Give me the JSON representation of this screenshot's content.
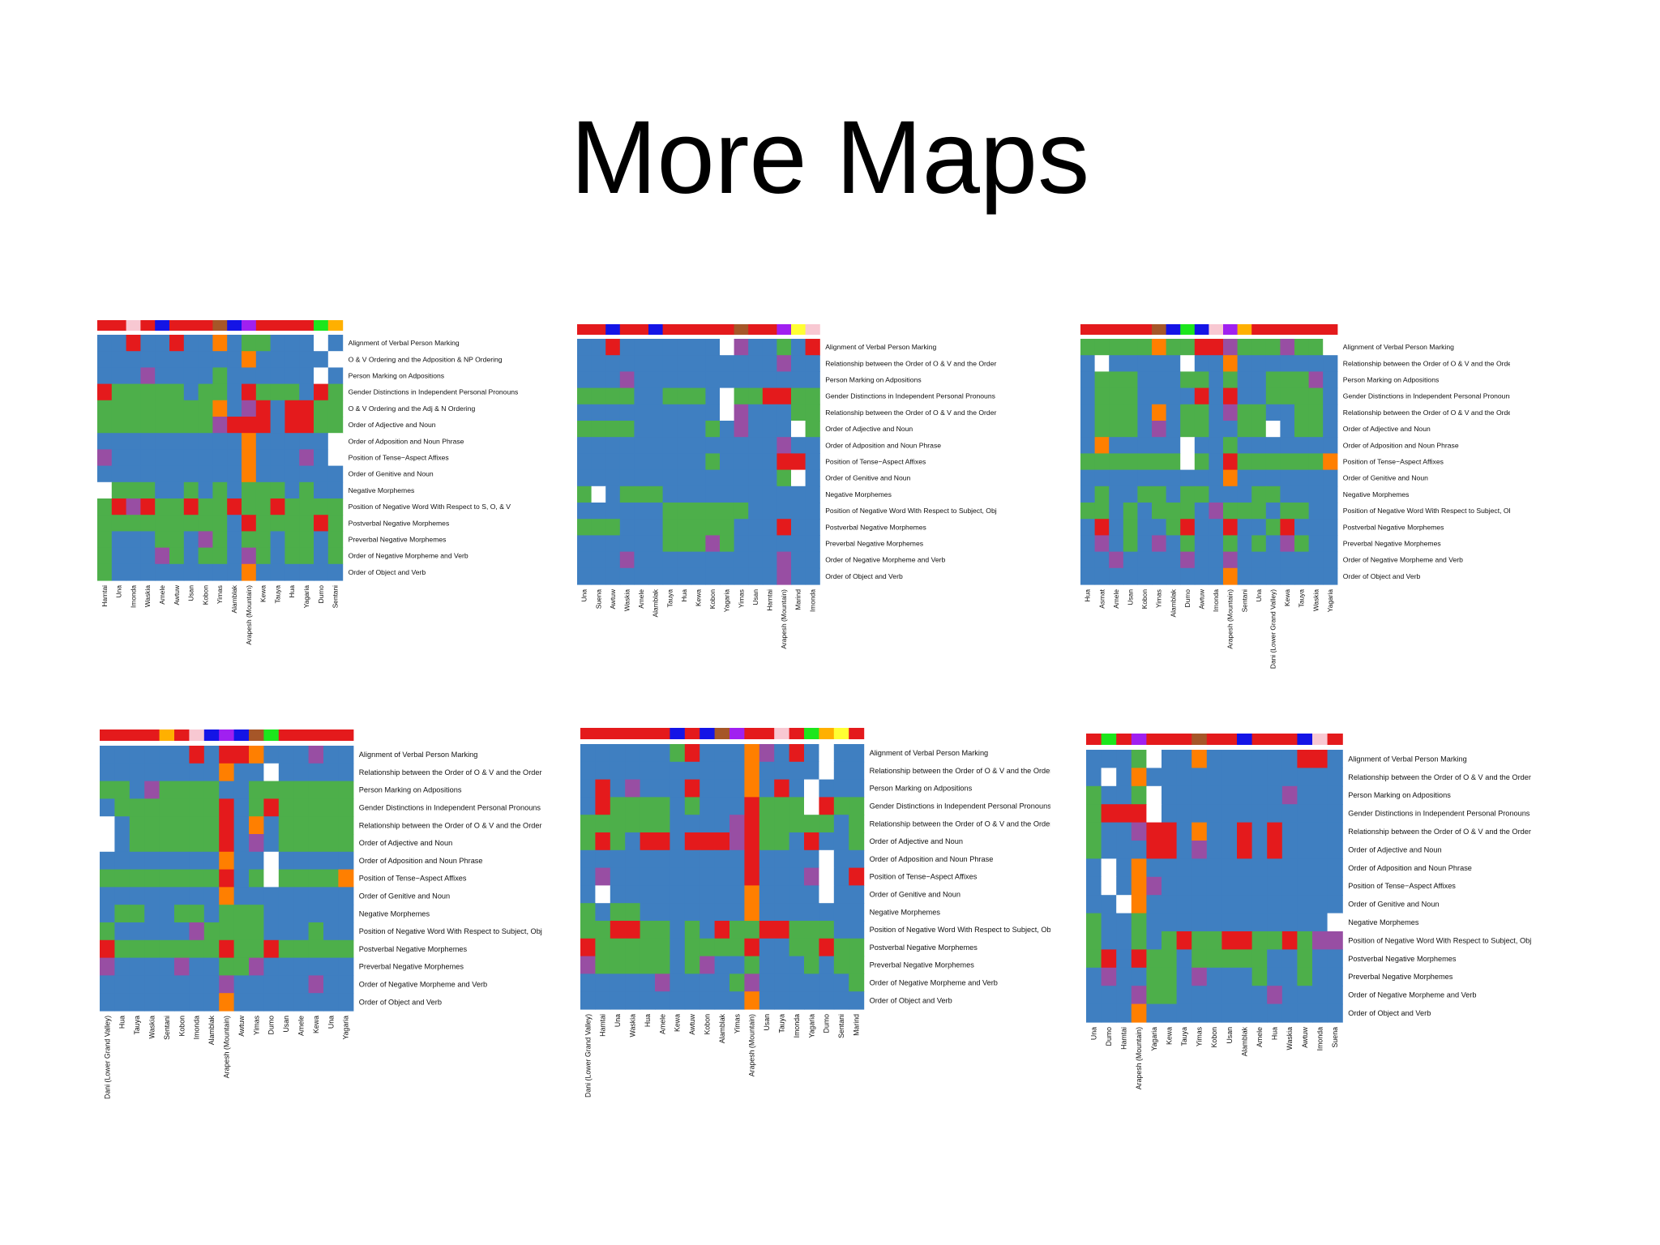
{
  "slide": {
    "title": "More Maps"
  },
  "palette": {
    "blue": "#3F7FC1",
    "green": "#4DAF4A",
    "red": "#E41A1C",
    "orange": "#FF7F00",
    "purple": "#984EA3",
    "white": "#FFFFFF",
    "navy": "#1414E6",
    "violet": "#A020F0",
    "brown": "#A65628",
    "pink": "#F8C8D2",
    "yellow": "#FFFF33",
    "lime": "#1CE61C",
    "gold": "#FFB000"
  },
  "color_key": {
    "B": "blue",
    "G": "green",
    "R": "red",
    "O": "orange",
    "P": "purple",
    "W": "white",
    "N": "navy",
    "V": "violet",
    "K": "brown",
    "k": "pink",
    "Y": "yellow",
    "L": "lime",
    "A": "gold"
  },
  "chart_data": [
    {
      "type": "heatmap",
      "columns": [
        "Hamtai",
        "Una",
        "Imonda",
        "Waskia",
        "Amele",
        "Awtuw",
        "Usan",
        "Kobon",
        "Yimas",
        "Alamblak",
        "Arapesh (Mountain)",
        "Kewa",
        "Tauya",
        "Hua",
        "Yagaria",
        "Dumo",
        "Sentani"
      ],
      "rows": [
        "Alignment of Verbal Person Marking",
        "O & V Ordering and the Adposition & NP Ordering",
        "Person Marking on Adpositions",
        "Gender Distinctions in Independent Personal Pronouns",
        "O & V Ordering and the Adj & N Ordering",
        "Order of Adjective and Noun",
        "Order of Adposition and Noun Phrase",
        "Position of Tense−Aspect Affixes",
        "Order of Genitive and Noun",
        "Negative Morphemes",
        "Position of Negative Word With Respect to S, O, & V",
        "Postverbal Negative Morphemes",
        "Preverbal Negative Morphemes",
        "Order of Negative Morpheme and Verb",
        "Order of Object and Verb"
      ],
      "top_bar": [
        "R",
        "R",
        "k",
        "R",
        "N",
        "R",
        "R",
        "R",
        "K",
        "N",
        "V",
        "R",
        "R",
        "R",
        "R",
        "L",
        "A"
      ],
      "cells": [
        "BBRBBRBBOBGGBBBWB",
        "BBBBBBBBBBOBBBBBW",
        "BBBPBBBBGBBBBBBWB",
        "RGGGGGBGGBRGGGBRG",
        "GGGGGGGGOBPRBRRGG",
        "GGGGGGGGPRRRBRRGG",
        "BBBBBBBBBBOBBBBBW",
        "PBBBBBBBBBOBBBPBW",
        "BBBBBBBBBBOBBBBBB",
        "WGGGBBGBGBGGGBGBB",
        "GRPRGGRGGRGGRGGGG",
        "GGGGGGGGGBRGGGGRG",
        "GBBBGGBPGBGGBGGBG",
        "GBBBPGBGGBPGBGGBG",
        "GBBBBBBBBBOBBBBBB"
      ]
    },
    {
      "type": "heatmap",
      "columns": [
        "Una",
        "Suena",
        "Awtuw",
        "Waskia",
        "Amele",
        "Alamblak",
        "Tauya",
        "Hua",
        "Kewa",
        "Kobon",
        "Yagaria",
        "Yimas",
        "Usan",
        "Hamtai",
        "Arapesh (Mountain)",
        "Marind",
        "Imonda"
      ],
      "rows": [
        "Alignment of Verbal Person Marking",
        "Relationship between the Order of O & V and the Order",
        "Person Marking on Adpositions",
        "Gender Distinctions in Independent Personal Pronouns",
        "Relationship between the Order of O & V and the Order",
        "Order of Adjective and Noun",
        "Order of Adposition and Noun Phrase",
        "Position of Tense−Aspect Affixes",
        "Order of Genitive and Noun",
        "Negative Morphemes",
        "Position of Negative Word With Respect to Subject, Obj",
        "Postverbal Negative Morphemes",
        "Preverbal Negative Morphemes",
        "Order of Negative Morpheme and Verb",
        "Order of Object and Verb"
      ],
      "top_bar": [
        "R",
        "R",
        "N",
        "R",
        "R",
        "N",
        "R",
        "R",
        "R",
        "R",
        "R",
        "K",
        "R",
        "R",
        "V",
        "Y",
        "k"
      ],
      "cells": [
        "BBRBBBBBBBWPBBGBR",
        "BBBBBBBBBBBBBBPBB",
        "BBBPBBBBBBBBBBBBB",
        "GGGGBBGGGBWGGRRGG",
        "BBBBBBBBBBWPBBBGG",
        "GGGGBBBBBGBPBBBWG",
        "BBBBBBBBBBBBBBPBB",
        "BBBBBBBBBGBBBBRRB",
        "BBBBBBBBBBBBBBGWB",
        "GWBGGGBBBBBBBBBBB",
        "BBBBBBGGGGGGBBBBB",
        "GGGBBBGGGGGBBBRBB",
        "BBBBBBGGGPGBBBBBB",
        "BBBPBBBBBBBBBBPBB",
        "BBBBBBBBBBBBBBPBB"
      ]
    },
    {
      "type": "heatmap",
      "columns": [
        "Hua",
        "Asmat",
        "Amele",
        "Usan",
        "Kobon",
        "Yimas",
        "Alamblak",
        "Dumo",
        "Awtuw",
        "Imonda",
        "Arapesh (Mountain)",
        "Sentani",
        "Una",
        "Dani (Lower Grand Valley)",
        "Kewa",
        "Tauya",
        "Waskia",
        "Yagaria"
      ],
      "rows": [
        "Alignment of Verbal Person Marking",
        "Relationship between the Order of O & V and the Order",
        "Person Marking on Adpositions",
        "Gender Distinctions in Independent Personal Pronouns",
        "Relationship between the Order of O & V and the Order",
        "Order of Adjective and Noun",
        "Order of Adposition and Noun Phrase",
        "Position of Tense−Aspect Affixes",
        "Order of Genitive and Noun",
        "Negative Morphemes",
        "Position of Negative Word With Respect to Subject, Obj",
        "Postverbal Negative Morphemes",
        "Preverbal Negative Morphemes",
        "Order of Negative Morpheme and Verb",
        "Order of Object and Verb"
      ],
      "top_bar": [
        "R",
        "R",
        "R",
        "R",
        "R",
        "K",
        "N",
        "L",
        "N",
        "k",
        "V",
        "A",
        "R",
        "R",
        "R",
        "R",
        "R",
        "R"
      ],
      "cells": [
        "GGGGGOGGRRPGGGPGGW",
        "BWBBBBBWBBOBBBBBBB",
        "BGGGBBBGGBGBBGGGPB",
        "BGGGBBBBRBRBBGGGGB",
        "BGGGBOBGGBPGGBBGGB",
        "BGGGBPBGGBBGGWBGGB",
        "BOBBBBBWBBGBBBBBBB",
        "GGGGGGGWGBRGGGGGGO",
        "BBBBBBBBBBOBBBBBBB",
        "BGBBGGBGGBBBGGBBBB",
        "GGBGBGGGBPGGGBGGBB",
        "BRBGBBGRBBRBBGRBBB",
        "BPBGBPBGBBGBGBPGBB",
        "BBPBBBBPBBPBBBBBBB",
        "BBBBBBBBBBOBBBBBBB"
      ]
    },
    {
      "type": "heatmap",
      "columns": [
        "Dani (Lower Grand Valley)",
        "Hua",
        "Tauya",
        "Waskia",
        "Sentani",
        "Kobon",
        "Imonda",
        "Alamblak",
        "Arapesh (Mountain)",
        "Awtuw",
        "Yimas",
        "Dumo",
        "Usan",
        "Amele",
        "Kewa",
        "Una",
        "Yagaria"
      ],
      "rows": [
        "Alignment of Verbal Person Marking",
        "Relationship between the Order of O & V and the Order",
        "Person Marking on Adpositions",
        "Gender Distinctions in Independent Personal Pronouns",
        "Relationship between the Order of O & V and the Order",
        "Order of Adjective and Noun",
        "Order of Adposition and Noun Phrase",
        "Position of Tense−Aspect Affixes",
        "Order of Genitive and Noun",
        "Negative Morphemes",
        "Position of Negative Word With Respect to Subject, Obj",
        "Postverbal Negative Morphemes",
        "Preverbal Negative Morphemes",
        "Order of Negative Morpheme and Verb",
        "Order of Object and Verb"
      ],
      "top_bar": [
        "R",
        "R",
        "R",
        "R",
        "A",
        "R",
        "k",
        "N",
        "V",
        "N",
        "K",
        "L",
        "R",
        "R",
        "R",
        "R",
        "R"
      ],
      "cells": [
        "BBBBBBRBRROBBBPBB",
        "BBBBBBBBOBBWBBBBB",
        "GGBPGGGGBBGGGGGGG",
        "BGGGGGGGRBGRGGGGG",
        "WBGGGGGGRBOBGGGGG",
        "WBGGGGGGRBPBGGGGG",
        "BBBBBBBBOBBWBBBBB",
        "GGGGGGGGRBGWGGGGO",
        "BBBBBBBBOBBBBBBBB",
        "BGGBBGGBGGGBBBBBB",
        "GBBBBBPGGGGBBBGBB",
        "RGGGGGGGRGGRGGGGG",
        "PBBBBPBBGGPBBBBBB",
        "BBBBBBBBPBBBBBPBB",
        "BBBBBBBBOBBBBBBBB"
      ]
    },
    {
      "type": "heatmap",
      "columns": [
        "Dani (Lower Grand Valley)",
        "Hamtai",
        "Una",
        "Waskia",
        "Hua",
        "Amele",
        "Kewa",
        "Awtuw",
        "Kobon",
        "Alamblak",
        "Yimas",
        "Arapesh (Mountain)",
        "Usan",
        "Tauya",
        "Imonda",
        "Yagaria",
        "Dumo",
        "Sentani",
        "Marind"
      ],
      "rows": [
        "Alignment of Verbal Person Marking",
        "Relationship between the Order of O & V and the Order",
        "Person Marking on Adpositions",
        "Gender Distinctions in Independent Personal Pronouns",
        "Relationship between the Order of O & V and the Order",
        "Order of Adjective and Noun",
        "Order of Adposition and Noun Phrase",
        "Position of Tense−Aspect Affixes",
        "Order of Genitive and Noun",
        "Negative Morphemes",
        "Position of Negative Word With Respect to Subject, Obj",
        "Postverbal Negative Morphemes",
        "Preverbal Negative Morphemes",
        "Order of Negative Morpheme and Verb",
        "Order of Object and Verb"
      ],
      "top_bar": [
        "R",
        "R",
        "R",
        "R",
        "R",
        "R",
        "N",
        "R",
        "N",
        "K",
        "V",
        "R",
        "R",
        "k",
        "R",
        "L",
        "A",
        "Y",
        "R"
      ],
      "cells": [
        "BBBBBBGRBBBOPBRBWBB",
        "BBBBBBBBBBBOBBBBWBB",
        "BRBPBBBRBBBOBRBWBBB",
        "BRGGGGBGBBBRGGGWRGG",
        "GGGGGGBBBBPRGGGGGBG",
        "GRGBRRBRRRPRGGBRBBG",
        "BBBBBBBBBBBRBBBBWBB",
        "BPBBBBBBBBBRBBBPWBR",
        "BWBBBBBBBBBOBBBBWBB",
        "GBGGBBBBBBBOBBBBBBB",
        "GGRRGGBGBRGGRRGGGBB",
        "RGGGGGBGGGGRBBGGRGG",
        "PGGGGGBGPBBGBBBGBGG",
        "BBBBBPBBBBGPBBBBBBG",
        "BBBBBBBBBBBOBBBBBBB"
      ]
    },
    {
      "type": "heatmap",
      "columns": [
        "Una",
        "Dumo",
        "Hamtai",
        "Arapesh (Mountain)",
        "Yagaria",
        "Kewa",
        "Tauya",
        "Yimas",
        "Kobon",
        "Usan",
        "Alamblak",
        "Amele",
        "Hua",
        "Waskia",
        "Awtuw",
        "Imonda",
        "Suena"
      ],
      "rows": [
        "Alignment of Verbal Person Marking",
        "Relationship between the Order of O & V and the Order",
        "Person Marking on Adpositions",
        "Gender Distinctions in Independent Personal Pronouns",
        "Relationship between the Order of O & V and the Order",
        "Order of Adjective and Noun",
        "Order of Adposition and Noun Phrase",
        "Position of Tense−Aspect Affixes",
        "Order of Genitive and Noun",
        "Negative Morphemes",
        "Position of Negative Word With Respect to Subject, Obj",
        "Postverbal Negative Morphemes",
        "Preverbal Negative Morphemes",
        "Order of Negative Morpheme and Verb",
        "Order of Object and Verb"
      ],
      "top_bar": [
        "R",
        "L",
        "R",
        "V",
        "R",
        "R",
        "R",
        "K",
        "R",
        "R",
        "N",
        "R",
        "R",
        "R",
        "N",
        "k",
        "R"
      ],
      "cells": [
        "BBBGWBBOBBBBBBRRB",
        "BWBOBBBBBBBBBBBBB",
        "GBBGWBBBBBBBBPBBB",
        "GRRRWBBBBBBBBBBBB",
        "GBBPRRBOBBRBRBBBB",
        "GBBBRRBPBBRBRBBBB",
        "BWBOBBBBBBBBBBBBB",
        "BWBOPBBBBBBBBBBBB",
        "BBWOBBBBBBBBBBBBB",
        "GBBGBBBBBBBBBBBBW",
        "GBBGBGRGGRRGGRGPP",
        "GRBRGGBGGGGGBBGBB",
        "BPBBGGBPBBBGBBGBB",
        "BBBPGGBBBBBBPBBBB",
        "BBBOBBBBBBBBBBBBB"
      ]
    }
  ]
}
